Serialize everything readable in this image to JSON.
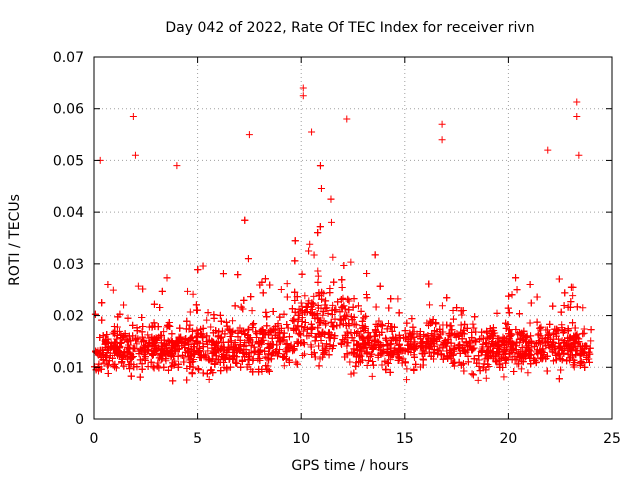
{
  "chart_data": {
    "type": "scatter",
    "title": "Day 042 of 2022, Rate Of TEC Index for receiver rivn",
    "xlabel": "GPS time / hours",
    "ylabel": "ROTI / TECUs",
    "xlim": [
      0,
      25
    ],
    "ylim": [
      0,
      0.07
    ],
    "x_ticks": [
      0,
      5,
      10,
      15,
      20,
      25
    ],
    "x_tick_labels": [
      "0",
      "5",
      "10",
      "15",
      "20",
      "25"
    ],
    "y_ticks": [
      0,
      0.01,
      0.02,
      0.03,
      0.04,
      0.05,
      0.06,
      0.07
    ],
    "y_tick_labels": [
      "0",
      "0.01",
      "0.02",
      "0.03",
      "0.04",
      "0.05",
      "0.06",
      "0.07"
    ],
    "grid": true,
    "marker": "+",
    "color": "#ff0000",
    "data_range_x": [
      0,
      24
    ],
    "series": [
      {
        "name": "ROTI",
        "note": "dense time series of ROTI samples from 0 to 24 h; typical band 0.005-0.025, enhanced 0.01-0.045 between ~9 and 13 h",
        "notable_points": [
          {
            "x": 0.3,
            "y": 0.05
          },
          {
            "x": 1.9,
            "y": 0.0585
          },
          {
            "x": 2.0,
            "y": 0.051
          },
          {
            "x": 4.0,
            "y": 0.049
          },
          {
            "x": 7.5,
            "y": 0.055
          },
          {
            "x": 10.1,
            "y": 0.064
          },
          {
            "x": 10.1,
            "y": 0.0625
          },
          {
            "x": 10.5,
            "y": 0.0555
          },
          {
            "x": 12.2,
            "y": 0.058
          },
          {
            "x": 16.8,
            "y": 0.057
          },
          {
            "x": 16.8,
            "y": 0.054
          },
          {
            "x": 21.9,
            "y": 0.052
          },
          {
            "x": 23.3,
            "y": 0.0613
          },
          {
            "x": 23.3,
            "y": 0.0585
          },
          {
            "x": 23.4,
            "y": 0.051
          }
        ]
      }
    ]
  }
}
